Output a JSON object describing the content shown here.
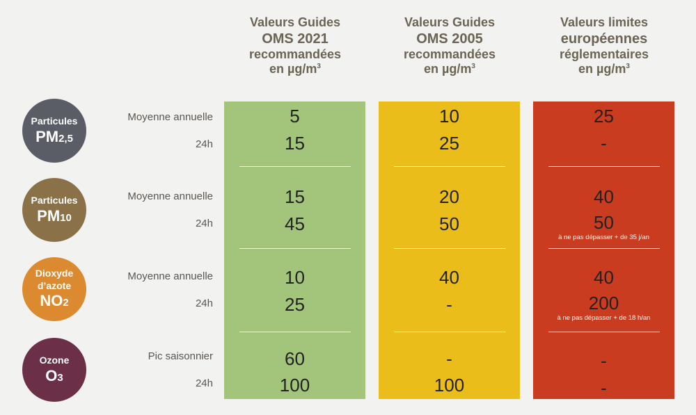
{
  "headers": [
    {
      "l1": "Valeurs Guides",
      "l2": "OMS 2021",
      "l3": "recommandées",
      "l4": "en µg/m",
      "sup": "3"
    },
    {
      "l1": "Valeurs Guides",
      "l2": "OMS 2005",
      "l3": "recommandées",
      "l4": "en µg/m",
      "sup": "3"
    },
    {
      "l1": "Valeurs limites",
      "l2": "européennes",
      "l3": "réglementaires",
      "l4": "en µg/m",
      "sup": "3"
    }
  ],
  "colors": {
    "who2021": "#a3c57b",
    "who2005": "#ebbd1a",
    "eu": "#c93c1f",
    "pm25": "#5a5c66",
    "pm10": "#8a7147",
    "no2": "#dc8a2f",
    "o3": "#6b2f47"
  },
  "pollutants": [
    {
      "label": "Particules",
      "chem": "PM",
      "sub": "2,5"
    },
    {
      "label": "Particules",
      "chem": "PM",
      "sub": "10"
    },
    {
      "label1": "Dioxyde",
      "label2": "d’azote",
      "chem": "NO",
      "sub": "2"
    },
    {
      "label": "Ozone",
      "chem": "O",
      "sub": "3"
    }
  ],
  "rows": [
    {
      "label": "Moyenne annuelle",
      "who2021": "5",
      "who2005": "10",
      "eu": "25"
    },
    {
      "label": "24h",
      "who2021": "15",
      "who2005": "25",
      "eu": "-"
    },
    {
      "label": "Moyenne annuelle",
      "who2021": "15",
      "who2005": "20",
      "eu": "40"
    },
    {
      "label": "24h",
      "who2021": "45",
      "who2005": "50",
      "eu": "50",
      "eu_note": "à ne pas dépasser + de 35 j/an"
    },
    {
      "label": "Moyenne annuelle",
      "who2021": "10",
      "who2005": "40",
      "eu": "40"
    },
    {
      "label": "24h",
      "who2021": "25",
      "who2005": "-",
      "eu": "200",
      "eu_note": "à ne pas dépasser + de 18 h/an"
    },
    {
      "label": "Pic saisonnier",
      "who2021": "60",
      "who2005": "-",
      "eu": "-"
    },
    {
      "label": "24h",
      "who2021": "100",
      "who2005": "100",
      "eu": "-"
    }
  ]
}
